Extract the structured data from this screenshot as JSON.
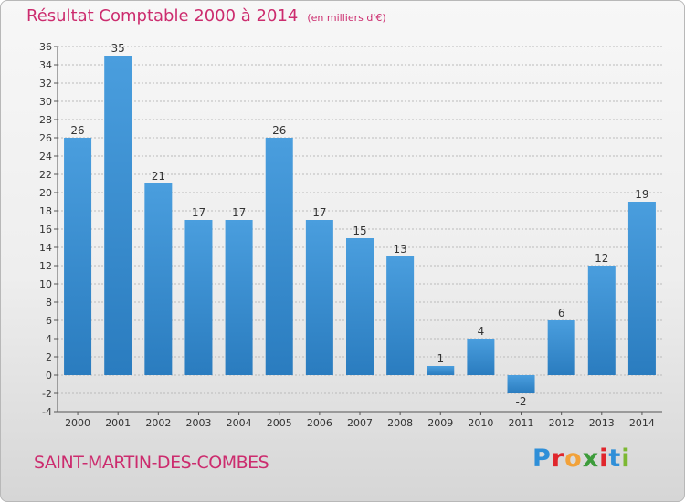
{
  "chart_data": {
    "type": "bar",
    "title": "Résultat Comptable 2000 à 2014",
    "unit_note": "(en milliers d'€)",
    "categories": [
      "2000",
      "2001",
      "2002",
      "2003",
      "2004",
      "2005",
      "2006",
      "2007",
      "2008",
      "2009",
      "2010",
      "2011",
      "2012",
      "2013",
      "2014"
    ],
    "values": [
      26,
      35,
      21,
      17,
      17,
      26,
      17,
      15,
      13,
      1,
      4,
      -2,
      6,
      12,
      19
    ],
    "ylim": [
      -4,
      36
    ],
    "yticks": [
      -4,
      -2,
      0,
      2,
      4,
      6,
      8,
      10,
      12,
      14,
      16,
      18,
      20,
      22,
      24,
      26,
      28,
      30,
      32,
      34,
      36
    ],
    "grid": true,
    "bar_color": "#4a9ede",
    "bar_color_dark": "#2a7cbf"
  },
  "footer": {
    "commune": "SAINT-MARTIN-DES-COMBES",
    "logo_letters": [
      "P",
      "r",
      "o",
      "x",
      "i",
      "t",
      "i"
    ],
    "logo_colors": [
      "#2f8fd8",
      "#e0262c",
      "#f2a23a",
      "#3d9c3b",
      "#e0262c",
      "#2f8fd8",
      "#7cb832"
    ]
  },
  "colors": {
    "title": "#cc2c6e",
    "grid": "#bbbbbb"
  }
}
